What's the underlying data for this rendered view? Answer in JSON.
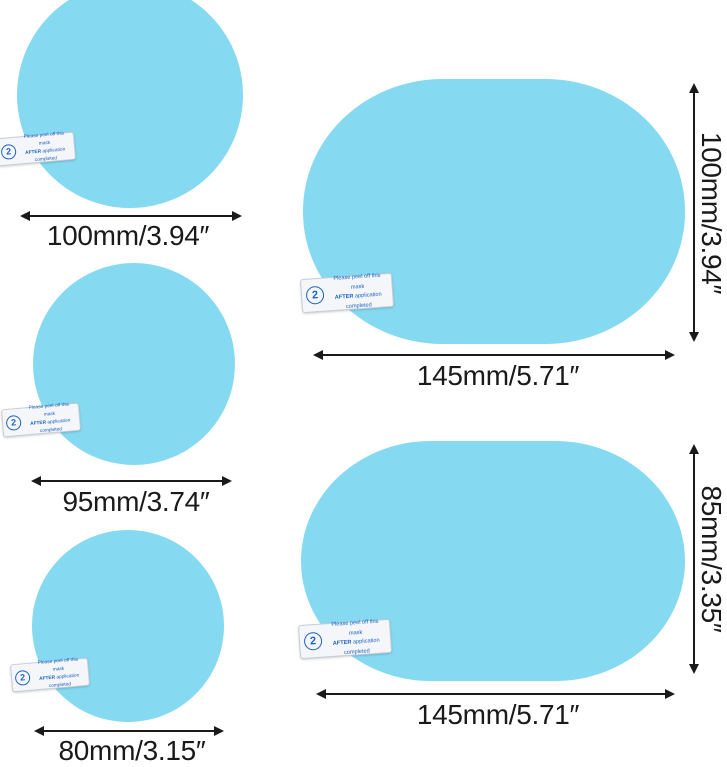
{
  "colors": {
    "film_blue": "#85daf2",
    "arrow_black": "#1a1a1a",
    "sticker_blue": "#2063c0"
  },
  "sticker": {
    "number": "2",
    "line1": "Please peel off this mask",
    "line2_bold": "AFTER",
    "line2_rest": " application completed"
  },
  "circles": [
    {
      "label": "100mm/3.94″"
    },
    {
      "label": "95mm/3.74″"
    },
    {
      "label": "80mm/3.15″"
    }
  ],
  "ovals": [
    {
      "width_label": "145mm/5.71″",
      "height_label": "100mm/3.94″"
    },
    {
      "width_label": "145mm/5.71″",
      "height_label": "85mm/3.35″"
    }
  ]
}
